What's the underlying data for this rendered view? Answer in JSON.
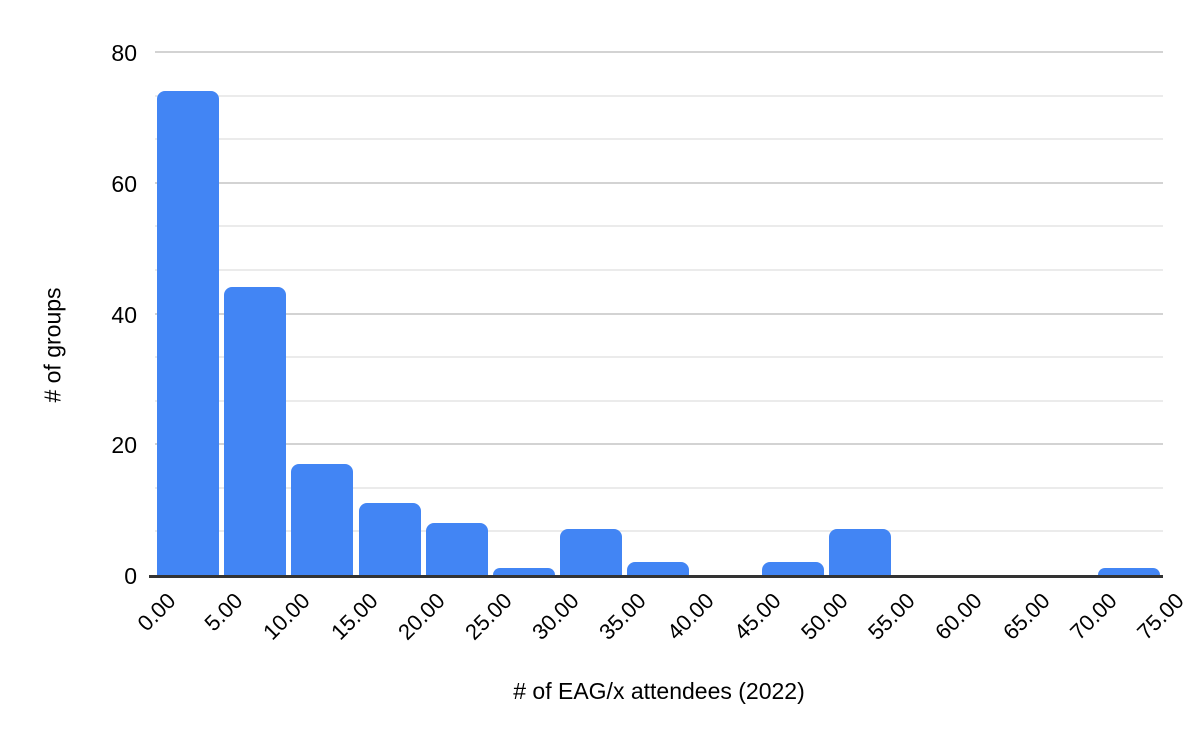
{
  "chart_data": {
    "type": "bar",
    "subtype": "histogram",
    "title": "",
    "xlabel": "# of EAG/x attendees (2022)",
    "ylabel": "# of groups",
    "categories": [
      "0.00",
      "5.00",
      "10.00",
      "15.00",
      "20.00",
      "25.00",
      "30.00",
      "35.00",
      "40.00",
      "45.00",
      "50.00",
      "55.00",
      "60.00",
      "65.00",
      "70.00",
      "75.00"
    ],
    "values_align": "between-ticks",
    "values": [
      74,
      44,
      17,
      11,
      8,
      1,
      7,
      2,
      0,
      2,
      7,
      0,
      0,
      0,
      1
    ],
    "ylim": [
      0,
      80
    ],
    "y_ticks": [
      0,
      20,
      40,
      60,
      80
    ],
    "minor_gridlines_between_majors": 2,
    "grid": "horizontal",
    "legend": "none",
    "bar_color": "#4285f4"
  },
  "colors": {
    "bar": "#4285f4",
    "major_grid": "#d3d3d3",
    "minor_grid": "#ebebeb",
    "axis_line": "#333333",
    "text": "#000000",
    "background": "#ffffff"
  }
}
